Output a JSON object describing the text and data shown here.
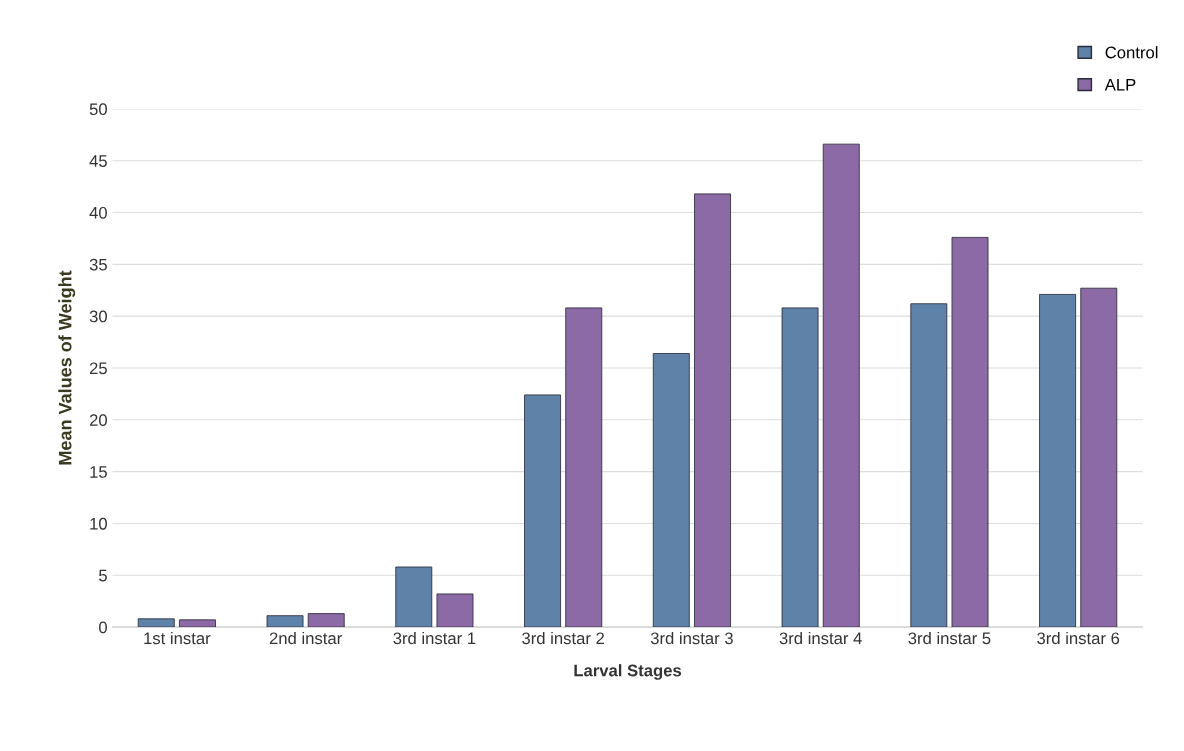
{
  "chart_data": {
    "type": "bar",
    "xlabel": "Larval Stages",
    "ylabel": "Mean Values of Weight",
    "categories": [
      "1st instar",
      "2nd instar",
      "3rd instar 1",
      "3rd instar 2",
      "3rd instar 3",
      "3rd instar 4",
      "3rd instar 5",
      "3rd instar 6"
    ],
    "series": [
      {
        "name": "Control",
        "color": "#5f82a8",
        "values": [
          0.8,
          1.1,
          5.8,
          22.4,
          26.4,
          30.8,
          31.2,
          32.1
        ]
      },
      {
        "name": "ALP",
        "color": "#8b6aa6",
        "values": [
          0.7,
          1.3,
          3.2,
          30.8,
          41.8,
          46.6,
          37.6,
          32.7
        ]
      }
    ],
    "ylim": [
      0,
      50
    ],
    "yticks": [
      0,
      5,
      10,
      15,
      20,
      25,
      30,
      35,
      40,
      45,
      50
    ],
    "grid": "y",
    "legend": "top right"
  }
}
